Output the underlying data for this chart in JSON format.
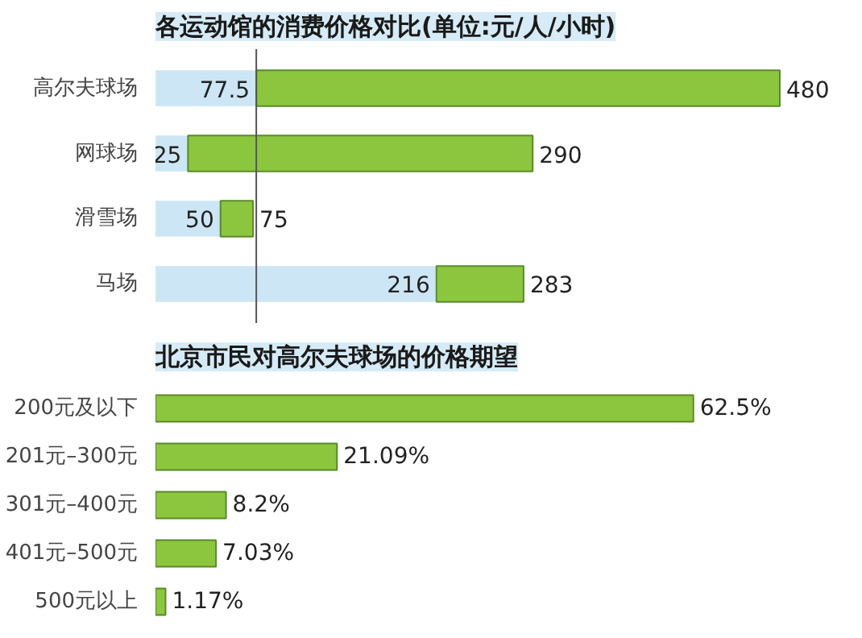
{
  "chart_data": [
    {
      "type": "bar",
      "orientation": "horizontal",
      "stacked": true,
      "title": "各运动馆的消费价格对比(单位:元/人/小时)",
      "categories": [
        "高尔夫球场",
        "网球场",
        "滑雪场",
        "马场"
      ],
      "series": [
        {
          "color": "#cde6f5",
          "values": [
            77.5,
            25,
            50,
            216
          ],
          "value_labels": [
            "77.5",
            "25",
            "50",
            "216"
          ]
        },
        {
          "color": "#8cc63f",
          "values": [
            402.5,
            265,
            25,
            67
          ]
        }
      ],
      "totals": [
        "480",
        "290",
        "75",
        "283"
      ],
      "ref_lines": [
        {
          "axis": "x",
          "value": 77.5,
          "color": "#555555"
        }
      ]
    },
    {
      "type": "bar",
      "orientation": "horizontal",
      "title": "北京市民对高尔夫球场的价格期望",
      "categories": [
        "200元及以下",
        "201元–300元",
        "301元–400元",
        "401元–500元",
        "500元以上"
      ],
      "values": [
        62.5,
        21.09,
        8.2,
        7.03,
        1.17
      ],
      "color": "#8cc63f",
      "value_labels": [
        "62.5%",
        "21.09%",
        "8.2%",
        "7.03%",
        "1.17%"
      ]
    }
  ]
}
